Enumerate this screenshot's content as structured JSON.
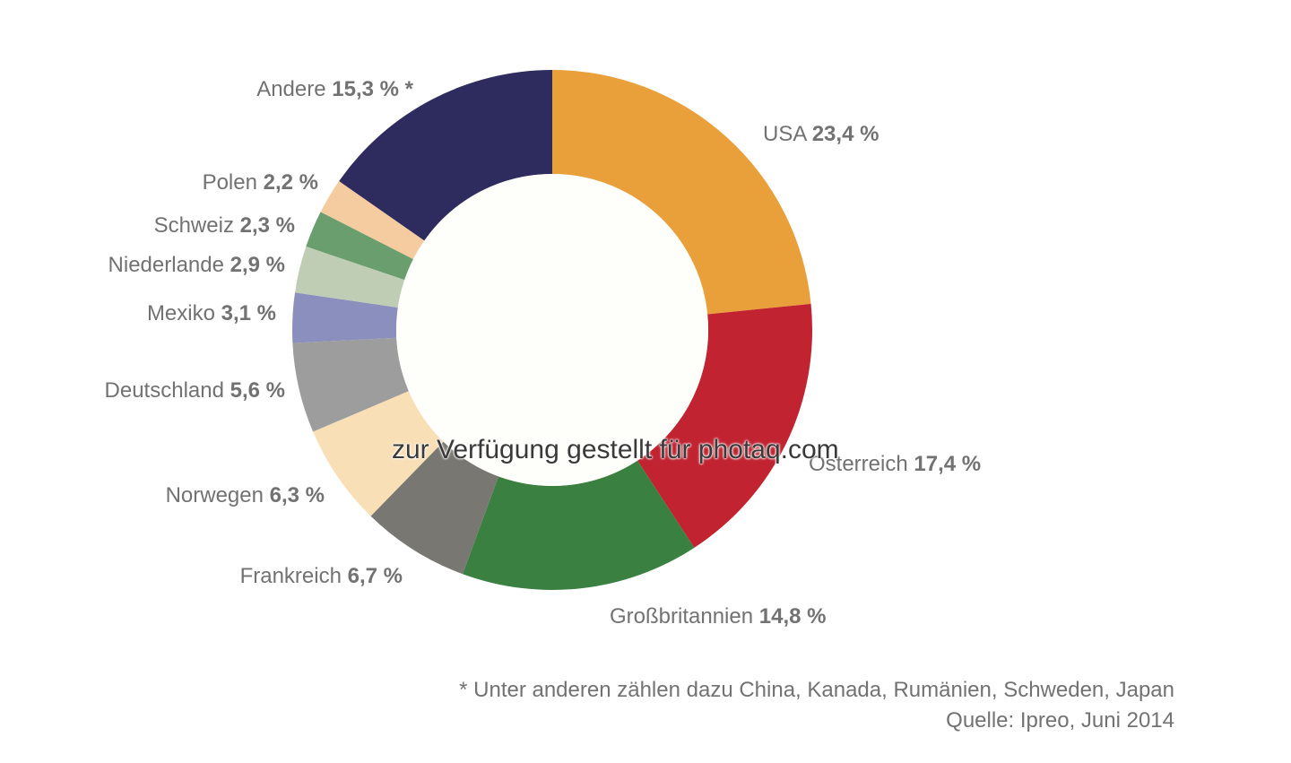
{
  "chart_data": {
    "type": "pie",
    "donut": true,
    "start": "top, clockwise",
    "slices": [
      {
        "label": "USA",
        "value": 23.4,
        "value_text": "23,4 %",
        "color": "#e9a03b"
      },
      {
        "label": "Österreich",
        "value": 17.4,
        "value_text": "17,4 %",
        "color": "#c12331"
      },
      {
        "label": "Großbritannien",
        "value": 14.8,
        "value_text": "14,8 %",
        "color": "#3a8040"
      },
      {
        "label": "Frankreich",
        "value": 6.7,
        "value_text": "6,7 %",
        "color": "#787772"
      },
      {
        "label": "Norwegen",
        "value": 6.3,
        "value_text": "6,3 %",
        "color": "#f9dfb5"
      },
      {
        "label": "Deutschland",
        "value": 5.6,
        "value_text": "5,6 %",
        "color": "#9d9d9d"
      },
      {
        "label": "Mexiko",
        "value": 3.1,
        "value_text": "3,1 %",
        "color": "#8b8fbe"
      },
      {
        "label": "Niederlande",
        "value": 2.9,
        "value_text": "2,9 %",
        "color": "#bfcdb4"
      },
      {
        "label": "Schweiz",
        "value": 2.3,
        "value_text": "2,3 %",
        "color": "#6a9e6e"
      },
      {
        "label": "Polen",
        "value": 2.2,
        "value_text": "2,2 %",
        "color": "#f5cba0"
      },
      {
        "label": "Andere",
        "value": 15.3,
        "value_text": "15,3 % *",
        "color": "#2e2c5e"
      }
    ]
  },
  "notes": {
    "footnote": "* Unter anderen zählen dazu China, Kanada, Rumänien, Schweden, Japan",
    "source": "Quelle: Ipreo, Juni 2014"
  },
  "watermark": "zur Verfügung gestellt für photaq.com"
}
